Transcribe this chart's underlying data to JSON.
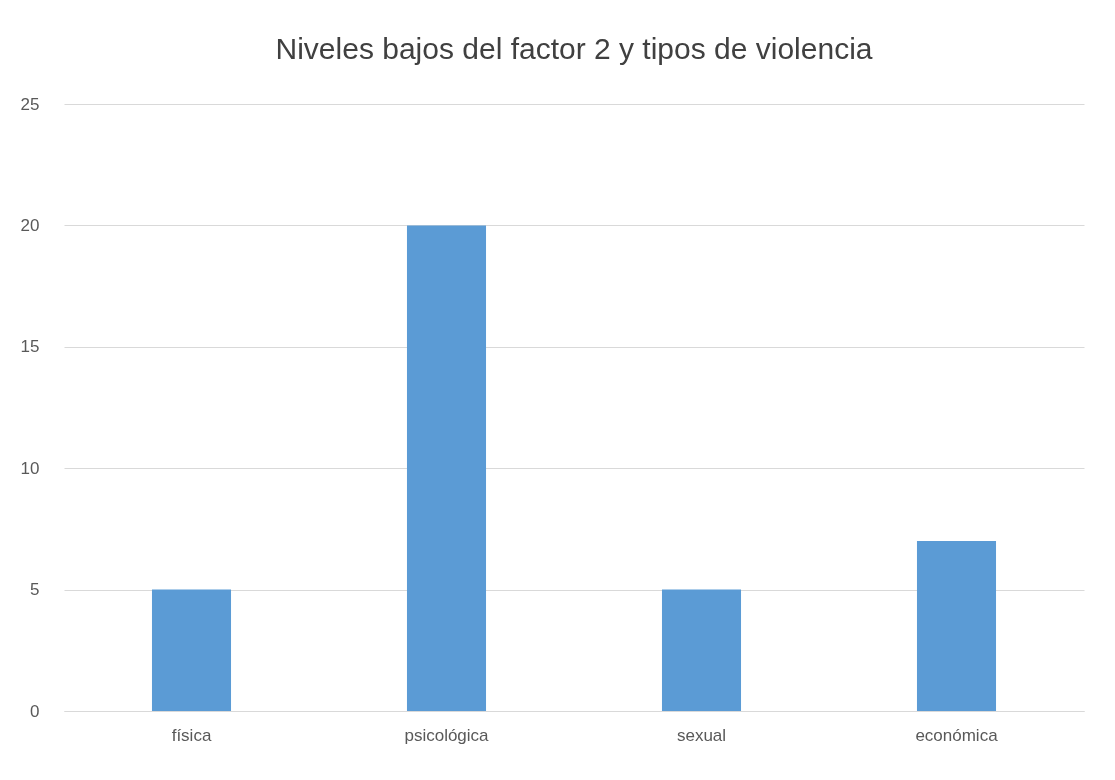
{
  "chart_data": {
    "type": "bar",
    "title": "Niveles bajos del factor 2 y tipos de violencia",
    "categories": [
      "física",
      "psicológica",
      "sexual",
      "económica"
    ],
    "values": [
      5,
      20,
      5,
      7
    ],
    "color": "#5b9bd5",
    "ylim": [
      0,
      25
    ],
    "yticks": [
      0,
      5,
      10,
      15,
      20,
      25
    ],
    "grid": "y"
  }
}
